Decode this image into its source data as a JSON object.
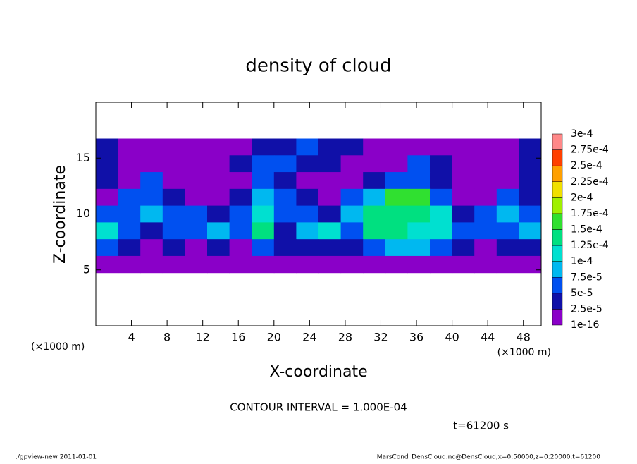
{
  "chart_data": {
    "type": "heatmap",
    "title": "density of cloud",
    "x_label": "X-coordinate",
    "y_label": "Z-coordinate",
    "x_unit": "(×1000 m)",
    "y_unit": "(×1000 m)",
    "xlim": [
      0,
      50
    ],
    "ylim": [
      0,
      20
    ],
    "xticks": [
      4,
      8,
      12,
      16,
      20,
      24,
      28,
      32,
      36,
      40,
      44,
      48
    ],
    "yticks": [
      5,
      10,
      15
    ],
    "x": [
      1.25,
      3.75,
      6.25,
      8.75,
      11.25,
      13.75,
      16.25,
      18.75,
      21.25,
      23.75,
      26.25,
      28.75,
      31.25,
      33.75,
      36.25,
      38.75,
      41.25,
      43.75,
      46.25,
      48.75
    ],
    "y": [
      16,
      14.5,
      13,
      11.5,
      10,
      8.5,
      7,
      5.5
    ],
    "z": [
      [
        3e-05,
        2e-05,
        1e-05,
        1e-05,
        1e-05,
        1e-05,
        2e-05,
        4e-05,
        4e-05,
        5e-05,
        4e-05,
        3e-05,
        2e-05,
        1e-05,
        1e-05,
        1e-05,
        1e-05,
        1e-05,
        2e-05,
        3e-05
      ],
      [
        4e-05,
        2e-05,
        2e-05,
        1e-05,
        1e-05,
        1e-05,
        4e-05,
        6e-05,
        5e-05,
        4e-05,
        3e-05,
        2e-05,
        1e-05,
        1e-05,
        5e-05,
        3e-05,
        1e-05,
        1e-05,
        2e-05,
        4e-05
      ],
      [
        3e-05,
        2e-05,
        5e-05,
        1e-05,
        1e-05,
        1e-05,
        2e-05,
        7e-05,
        4e-05,
        2e-05,
        1e-05,
        1e-05,
        4e-05,
        6e-05,
        6e-05,
        4e-05,
        1e-05,
        1e-05,
        1e-05,
        3e-05
      ],
      [
        2e-05,
        6e-05,
        7e-05,
        3e-05,
        2e-05,
        1e-05,
        4e-05,
        8e-05,
        5e-05,
        3e-05,
        2e-05,
        5e-05,
        9e-05,
        0.00016,
        0.00017,
        6e-05,
        2e-05,
        1e-05,
        5e-05,
        4e-05
      ],
      [
        5e-05,
        7e-05,
        8e-05,
        5e-05,
        5e-05,
        4e-05,
        6e-05,
        0.00011,
        6e-05,
        5e-05,
        4e-05,
        9e-05,
        0.00014,
        0.00013,
        0.00014,
        0.00011,
        4e-05,
        5e-05,
        8e-05,
        6e-05
      ],
      [
        0.00012,
        6e-05,
        4e-05,
        5e-05,
        7e-05,
        8e-05,
        5e-05,
        0.00013,
        4e-05,
        8e-05,
        0.00012,
        5e-05,
        0.00013,
        0.00013,
        0.00012,
        0.00011,
        5e-05,
        6e-05,
        7e-05,
        9e-05
      ],
      [
        6e-05,
        3e-05,
        2e-05,
        3e-05,
        2e-05,
        3e-05,
        2e-05,
        5e-05,
        3e-05,
        3e-05,
        4e-05,
        3e-05,
        7e-05,
        8e-05,
        8e-05,
        5e-05,
        3e-05,
        2e-05,
        4e-05,
        4e-05
      ],
      [
        2e-05,
        1e-05,
        1e-05,
        1e-05,
        1e-05,
        1e-05,
        1e-05,
        1e-05,
        1e-05,
        1e-05,
        1e-05,
        1e-05,
        2e-05,
        2e-05,
        2e-05,
        1e-05,
        1e-05,
        1e-05,
        1e-05,
        1e-05
      ]
    ],
    "colorbar": {
      "ticks": [
        {
          "value": 1e-16,
          "label": "1e-16"
        },
        {
          "value": 2.5e-05,
          "label": "2.5e-5"
        },
        {
          "value": 5e-05,
          "label": "5e-5"
        },
        {
          "value": 7.5e-05,
          "label": "7.5e-5"
        },
        {
          "value": 0.0001,
          "label": "1e-4"
        },
        {
          "value": 0.000125,
          "label": "1.25e-4"
        },
        {
          "value": 0.00015,
          "label": "1.5e-4"
        },
        {
          "value": 0.000175,
          "label": "1.75e-4"
        },
        {
          "value": 0.0002,
          "label": "2e-4"
        },
        {
          "value": 0.000225,
          "label": "2.25e-4"
        },
        {
          "value": 0.00025,
          "label": "2.5e-4"
        },
        {
          "value": 0.000275,
          "label": "2.75e-4"
        },
        {
          "value": 0.0003,
          "label": "3e-4"
        }
      ],
      "colors": [
        "#8a00c8",
        "#1010a8",
        "#0050f0",
        "#00b8f0",
        "#00e0d0",
        "#00e080",
        "#30e030",
        "#a0f000",
        "#f0e000",
        "#ffa000",
        "#ff4000",
        "#ff8888"
      ]
    },
    "annotations": [
      "CONTOUR INTERVAL = 1.000E-04",
      "t=61200 s",
      "./gpview-new   2011-01-01",
      "MarsCond_DensCloud.nc@DensCloud,x=0:50000,z=0:20000,t=61200"
    ]
  }
}
